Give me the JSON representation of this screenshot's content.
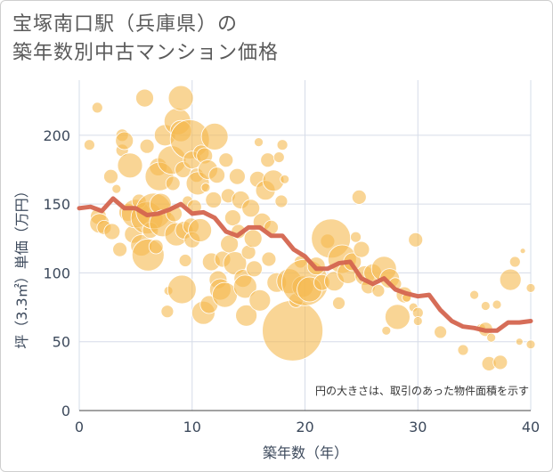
{
  "title_line1": "宝塚南口駅（兵庫県）の",
  "title_line2": "築年数別中古マンション価格",
  "colors": {
    "bubble": "#f5b94f",
    "line": "#d4654f",
    "grid": "#d6dce8",
    "background": "#ffffff"
  },
  "chart_data": {
    "type": "scatter",
    "xlabel": "築年数（年）",
    "ylabel": "坪（3.3㎡）単価（万円）",
    "xlim": [
      0,
      40
    ],
    "ylim": [
      0,
      240
    ],
    "xticks": [
      0,
      10,
      20,
      30,
      40
    ],
    "yticks": [
      0,
      50,
      100,
      150,
      200
    ],
    "grid": true,
    "annotation": "円の大きさは、取引のあった物件面積を示す",
    "line": {
      "x": [
        0,
        1,
        2,
        3,
        4,
        5,
        6,
        7,
        8,
        9,
        10,
        11,
        12,
        13,
        14,
        15,
        16,
        17,
        18,
        19,
        20,
        21,
        22,
        23,
        24,
        25,
        26,
        27,
        28,
        29,
        30,
        31,
        32,
        33,
        34,
        35,
        36,
        37,
        38,
        39,
        40
      ],
      "y": [
        147,
        148,
        145,
        154,
        147,
        147,
        142,
        143,
        146,
        150,
        143,
        144,
        140,
        130,
        127,
        133,
        133,
        127,
        127,
        117,
        112,
        103,
        103,
        107,
        108,
        96,
        92,
        96,
        88,
        85,
        83,
        84,
        73,
        65,
        61,
        60,
        58,
        58,
        64,
        64,
        65
      ]
    },
    "bubbles": [
      {
        "x": 0.9,
        "y": 193,
        "r": 6
      },
      {
        "x": 1.6,
        "y": 220,
        "r": 6
      },
      {
        "x": 1.7,
        "y": 141,
        "r": 9
      },
      {
        "x": 1.8,
        "y": 136,
        "r": 11
      },
      {
        "x": 2.2,
        "y": 133,
        "r": 8
      },
      {
        "x": 2.8,
        "y": 170,
        "r": 8
      },
      {
        "x": 2.9,
        "y": 130,
        "r": 9
      },
      {
        "x": 3.3,
        "y": 161,
        "r": 5
      },
      {
        "x": 3.6,
        "y": 117,
        "r": 8
      },
      {
        "x": 3.8,
        "y": 200,
        "r": 7
      },
      {
        "x": 3.8,
        "y": 189,
        "r": 7
      },
      {
        "x": 4.0,
        "y": 196,
        "r": 10
      },
      {
        "x": 4.3,
        "y": 144,
        "r": 10
      },
      {
        "x": 4.5,
        "y": 178,
        "r": 14
      },
      {
        "x": 4.8,
        "y": 128,
        "r": 10
      },
      {
        "x": 5.0,
        "y": 143,
        "r": 16
      },
      {
        "x": 5.3,
        "y": 152,
        "r": 8
      },
      {
        "x": 5.5,
        "y": 120,
        "r": 12
      },
      {
        "x": 5.8,
        "y": 227,
        "r": 10
      },
      {
        "x": 6.0,
        "y": 192,
        "r": 8
      },
      {
        "x": 6.0,
        "y": 140,
        "r": 18
      },
      {
        "x": 6.1,
        "y": 113,
        "r": 18
      },
      {
        "x": 6.3,
        "y": 131,
        "r": 9
      },
      {
        "x": 6.6,
        "y": 145,
        "r": 20
      },
      {
        "x": 6.8,
        "y": 119,
        "r": 8
      },
      {
        "x": 7.0,
        "y": 177,
        "r": 10
      },
      {
        "x": 7.1,
        "y": 170,
        "r": 16
      },
      {
        "x": 7.2,
        "y": 150,
        "r": 12
      },
      {
        "x": 7.4,
        "y": 136,
        "r": 15
      },
      {
        "x": 7.6,
        "y": 200,
        "r": 12
      },
      {
        "x": 7.8,
        "y": 72,
        "r": 7
      },
      {
        "x": 7.9,
        "y": 87,
        "r": 5
      },
      {
        "x": 8.2,
        "y": 182,
        "r": 16
      },
      {
        "x": 8.3,
        "y": 165,
        "r": 8
      },
      {
        "x": 8.4,
        "y": 143,
        "r": 9
      },
      {
        "x": 8.6,
        "y": 128,
        "r": 13
      },
      {
        "x": 8.7,
        "y": 210,
        "r": 15
      },
      {
        "x": 9.0,
        "y": 227,
        "r": 14
      },
      {
        "x": 9.0,
        "y": 203,
        "r": 12
      },
      {
        "x": 9.1,
        "y": 88,
        "r": 16
      },
      {
        "x": 9.2,
        "y": 175,
        "r": 9
      },
      {
        "x": 9.3,
        "y": 131,
        "r": 10
      },
      {
        "x": 9.4,
        "y": 109,
        "r": 7
      },
      {
        "x": 9.6,
        "y": 152,
        "r": 6
      },
      {
        "x": 9.8,
        "y": 197,
        "r": 22
      },
      {
        "x": 9.9,
        "y": 134,
        "r": 9
      },
      {
        "x": 10.0,
        "y": 182,
        "r": 10
      },
      {
        "x": 10.0,
        "y": 124,
        "r": 9
      },
      {
        "x": 10.2,
        "y": 148,
        "r": 8
      },
      {
        "x": 10.4,
        "y": 171,
        "r": 8
      },
      {
        "x": 10.5,
        "y": 165,
        "r": 13
      },
      {
        "x": 10.7,
        "y": 131,
        "r": 13
      },
      {
        "x": 10.8,
        "y": 187,
        "r": 9
      },
      {
        "x": 11.0,
        "y": 71,
        "r": 13
      },
      {
        "x": 11.1,
        "y": 185,
        "r": 9
      },
      {
        "x": 11.2,
        "y": 162,
        "r": 5
      },
      {
        "x": 11.4,
        "y": 175,
        "r": 11
      },
      {
        "x": 11.5,
        "y": 77,
        "r": 10
      },
      {
        "x": 11.7,
        "y": 108,
        "r": 10
      },
      {
        "x": 11.9,
        "y": 153,
        "r": 9
      },
      {
        "x": 12.0,
        "y": 199,
        "r": 15
      },
      {
        "x": 12.2,
        "y": 171,
        "r": 9
      },
      {
        "x": 12.3,
        "y": 95,
        "r": 10
      },
      {
        "x": 12.5,
        "y": 88,
        "r": 12
      },
      {
        "x": 12.7,
        "y": 110,
        "r": 9
      },
      {
        "x": 12.9,
        "y": 84,
        "r": 14
      },
      {
        "x": 13.0,
        "y": 182,
        "r": 8
      },
      {
        "x": 13.2,
        "y": 156,
        "r": 8
      },
      {
        "x": 13.3,
        "y": 121,
        "r": 10
      },
      {
        "x": 13.6,
        "y": 140,
        "r": 9
      },
      {
        "x": 13.8,
        "y": 107,
        "r": 13
      },
      {
        "x": 14.0,
        "y": 170,
        "r": 9
      },
      {
        "x": 14.1,
        "y": 130,
        "r": 8
      },
      {
        "x": 14.3,
        "y": 153,
        "r": 10
      },
      {
        "x": 14.5,
        "y": 96,
        "r": 10
      },
      {
        "x": 14.7,
        "y": 90,
        "r": 13
      },
      {
        "x": 14.8,
        "y": 69,
        "r": 12
      },
      {
        "x": 15.0,
        "y": 115,
        "r": 8
      },
      {
        "x": 15.2,
        "y": 147,
        "r": 10
      },
      {
        "x": 15.4,
        "y": 125,
        "r": 10
      },
      {
        "x": 15.5,
        "y": 103,
        "r": 9
      },
      {
        "x": 15.8,
        "y": 168,
        "r": 9
      },
      {
        "x": 15.9,
        "y": 195,
        "r": 5
      },
      {
        "x": 16.0,
        "y": 80,
        "r": 12
      },
      {
        "x": 16.2,
        "y": 137,
        "r": 10
      },
      {
        "x": 16.5,
        "y": 160,
        "r": 11
      },
      {
        "x": 16.7,
        "y": 182,
        "r": 8
      },
      {
        "x": 16.8,
        "y": 110,
        "r": 8
      },
      {
        "x": 17.0,
        "y": 133,
        "r": 8
      },
      {
        "x": 17.2,
        "y": 167,
        "r": 12
      },
      {
        "x": 17.5,
        "y": 93,
        "r": 11
      },
      {
        "x": 17.7,
        "y": 184,
        "r": 6
      },
      {
        "x": 17.9,
        "y": 152,
        "r": 7
      },
      {
        "x": 18.0,
        "y": 193,
        "r": 6
      },
      {
        "x": 18.2,
        "y": 168,
        "r": 5
      },
      {
        "x": 18.6,
        "y": 94,
        "r": 14
      },
      {
        "x": 18.9,
        "y": 58,
        "r": 34
      },
      {
        "x": 19.2,
        "y": 80,
        "r": 8
      },
      {
        "x": 19.6,
        "y": 108,
        "r": 7
      },
      {
        "x": 19.8,
        "y": 90,
        "r": 12
      },
      {
        "x": 20.0,
        "y": 93,
        "r": 26
      },
      {
        "x": 20.4,
        "y": 88,
        "r": 14
      },
      {
        "x": 21.0,
        "y": 105,
        "r": 10
      },
      {
        "x": 21.5,
        "y": 93,
        "r": 9
      },
      {
        "x": 22.0,
        "y": 123,
        "r": 8
      },
      {
        "x": 22.3,
        "y": 125,
        "r": 22
      },
      {
        "x": 22.6,
        "y": 94,
        "r": 11
      },
      {
        "x": 23.0,
        "y": 78,
        "r": 7
      },
      {
        "x": 23.3,
        "y": 110,
        "r": 16
      },
      {
        "x": 23.8,
        "y": 100,
        "r": 12
      },
      {
        "x": 24.2,
        "y": 108,
        "r": 10
      },
      {
        "x": 24.5,
        "y": 126,
        "r": 6
      },
      {
        "x": 24.8,
        "y": 155,
        "r": 8
      },
      {
        "x": 25.0,
        "y": 117,
        "r": 9
      },
      {
        "x": 25.3,
        "y": 98,
        "r": 11
      },
      {
        "x": 25.6,
        "y": 90,
        "r": 8
      },
      {
        "x": 26.0,
        "y": 100,
        "r": 10
      },
      {
        "x": 26.5,
        "y": 87,
        "r": 7
      },
      {
        "x": 27.0,
        "y": 103,
        "r": 14
      },
      {
        "x": 27.2,
        "y": 58,
        "r": 5
      },
      {
        "x": 27.5,
        "y": 96,
        "r": 11
      },
      {
        "x": 28.0,
        "y": 92,
        "r": 7
      },
      {
        "x": 28.2,
        "y": 68,
        "r": 14
      },
      {
        "x": 28.8,
        "y": 84,
        "r": 9
      },
      {
        "x": 29.0,
        "y": 82,
        "r": 5
      },
      {
        "x": 29.6,
        "y": 75,
        "r": 5
      },
      {
        "x": 29.8,
        "y": 124,
        "r": 8
      },
      {
        "x": 30.0,
        "y": 71,
        "r": 6
      },
      {
        "x": 30.0,
        "y": 65,
        "r": 5
      },
      {
        "x": 32.0,
        "y": 57,
        "r": 7
      },
      {
        "x": 34.0,
        "y": 44,
        "r": 6
      },
      {
        "x": 35.0,
        "y": 84,
        "r": 5
      },
      {
        "x": 35.6,
        "y": 60,
        "r": 5
      },
      {
        "x": 36.0,
        "y": 59,
        "r": 8
      },
      {
        "x": 36.0,
        "y": 76,
        "r": 5
      },
      {
        "x": 36.3,
        "y": 34,
        "r": 8
      },
      {
        "x": 36.5,
        "y": 53,
        "r": 5
      },
      {
        "x": 37.0,
        "y": 77,
        "r": 5
      },
      {
        "x": 37.3,
        "y": 35,
        "r": 8
      },
      {
        "x": 38.2,
        "y": 95,
        "r": 12
      },
      {
        "x": 38.6,
        "y": 108,
        "r": 6
      },
      {
        "x": 39.0,
        "y": 50,
        "r": 4
      },
      {
        "x": 39.3,
        "y": 116,
        "r": 3
      },
      {
        "x": 40.0,
        "y": 89,
        "r": 5
      },
      {
        "x": 40.0,
        "y": 48,
        "r": 5
      }
    ]
  }
}
